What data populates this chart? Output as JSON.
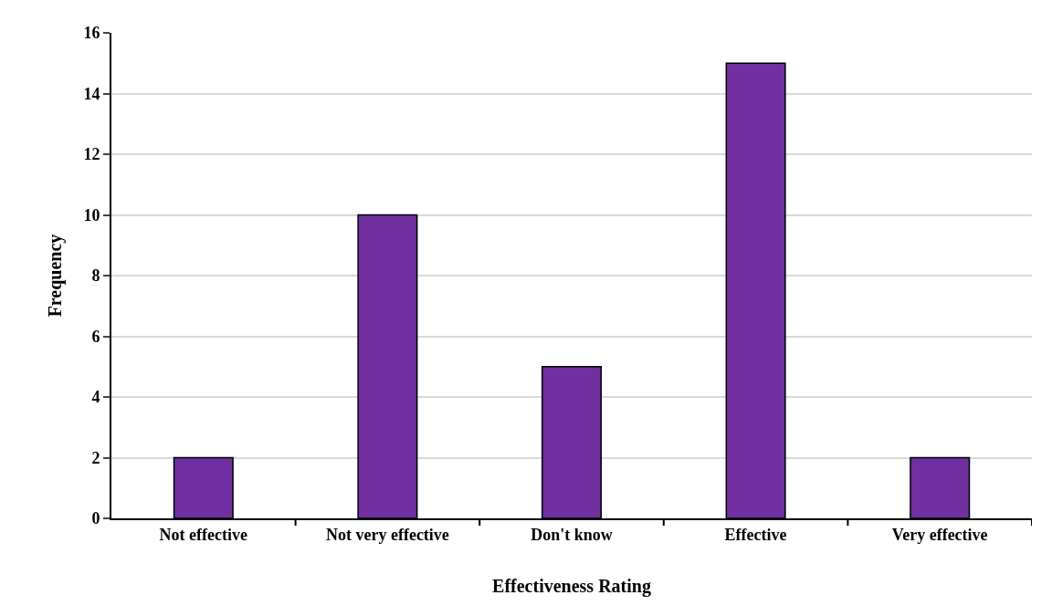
{
  "chart_data": {
    "type": "bar",
    "xlabel": "Effectiveness Rating",
    "ylabel": "Frequency",
    "categories": [
      "Not effective",
      "Not very effective",
      "Don't know",
      "Effective",
      "Very effective"
    ],
    "values": [
      2,
      10,
      5,
      15,
      2
    ],
    "color": "#7030a0",
    "ylim": [
      0,
      16
    ],
    "yticks": [
      0,
      2,
      4,
      6,
      8,
      10,
      12,
      14,
      16
    ],
    "grid": "y"
  }
}
